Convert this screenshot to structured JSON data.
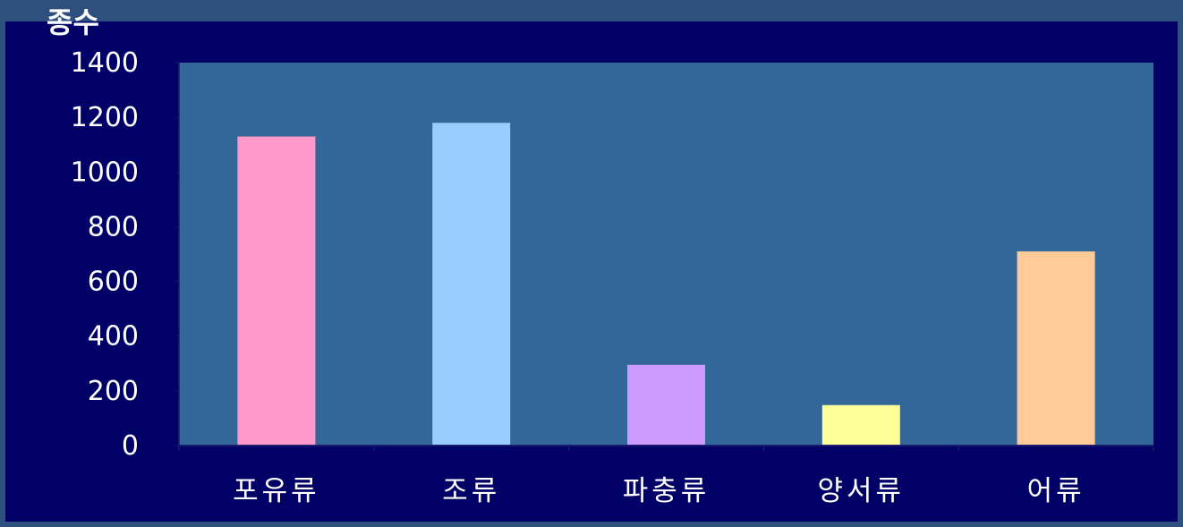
{
  "colors": {
    "background": "#000066",
    "frame": "#2f4f7f",
    "plot_area": "#336699",
    "axis": "#1a1a6e",
    "text": "#ffffff"
  },
  "chart_data": {
    "type": "bar",
    "ylabel": "종수",
    "categories": [
      "포유류",
      "조류",
      "파충류",
      "양서류",
      "어류"
    ],
    "values": [
      1130,
      1180,
      295,
      148,
      710
    ],
    "bar_colors": [
      "#ff99cc",
      "#99ccff",
      "#cc99ff",
      "#ffff99",
      "#ffcc99"
    ],
    "ylim": [
      0,
      1400
    ],
    "yticks": [
      "0",
      "200",
      "400",
      "600",
      "800",
      "1000",
      "1200",
      "1400"
    ],
    "grid": false,
    "legend": "none"
  }
}
